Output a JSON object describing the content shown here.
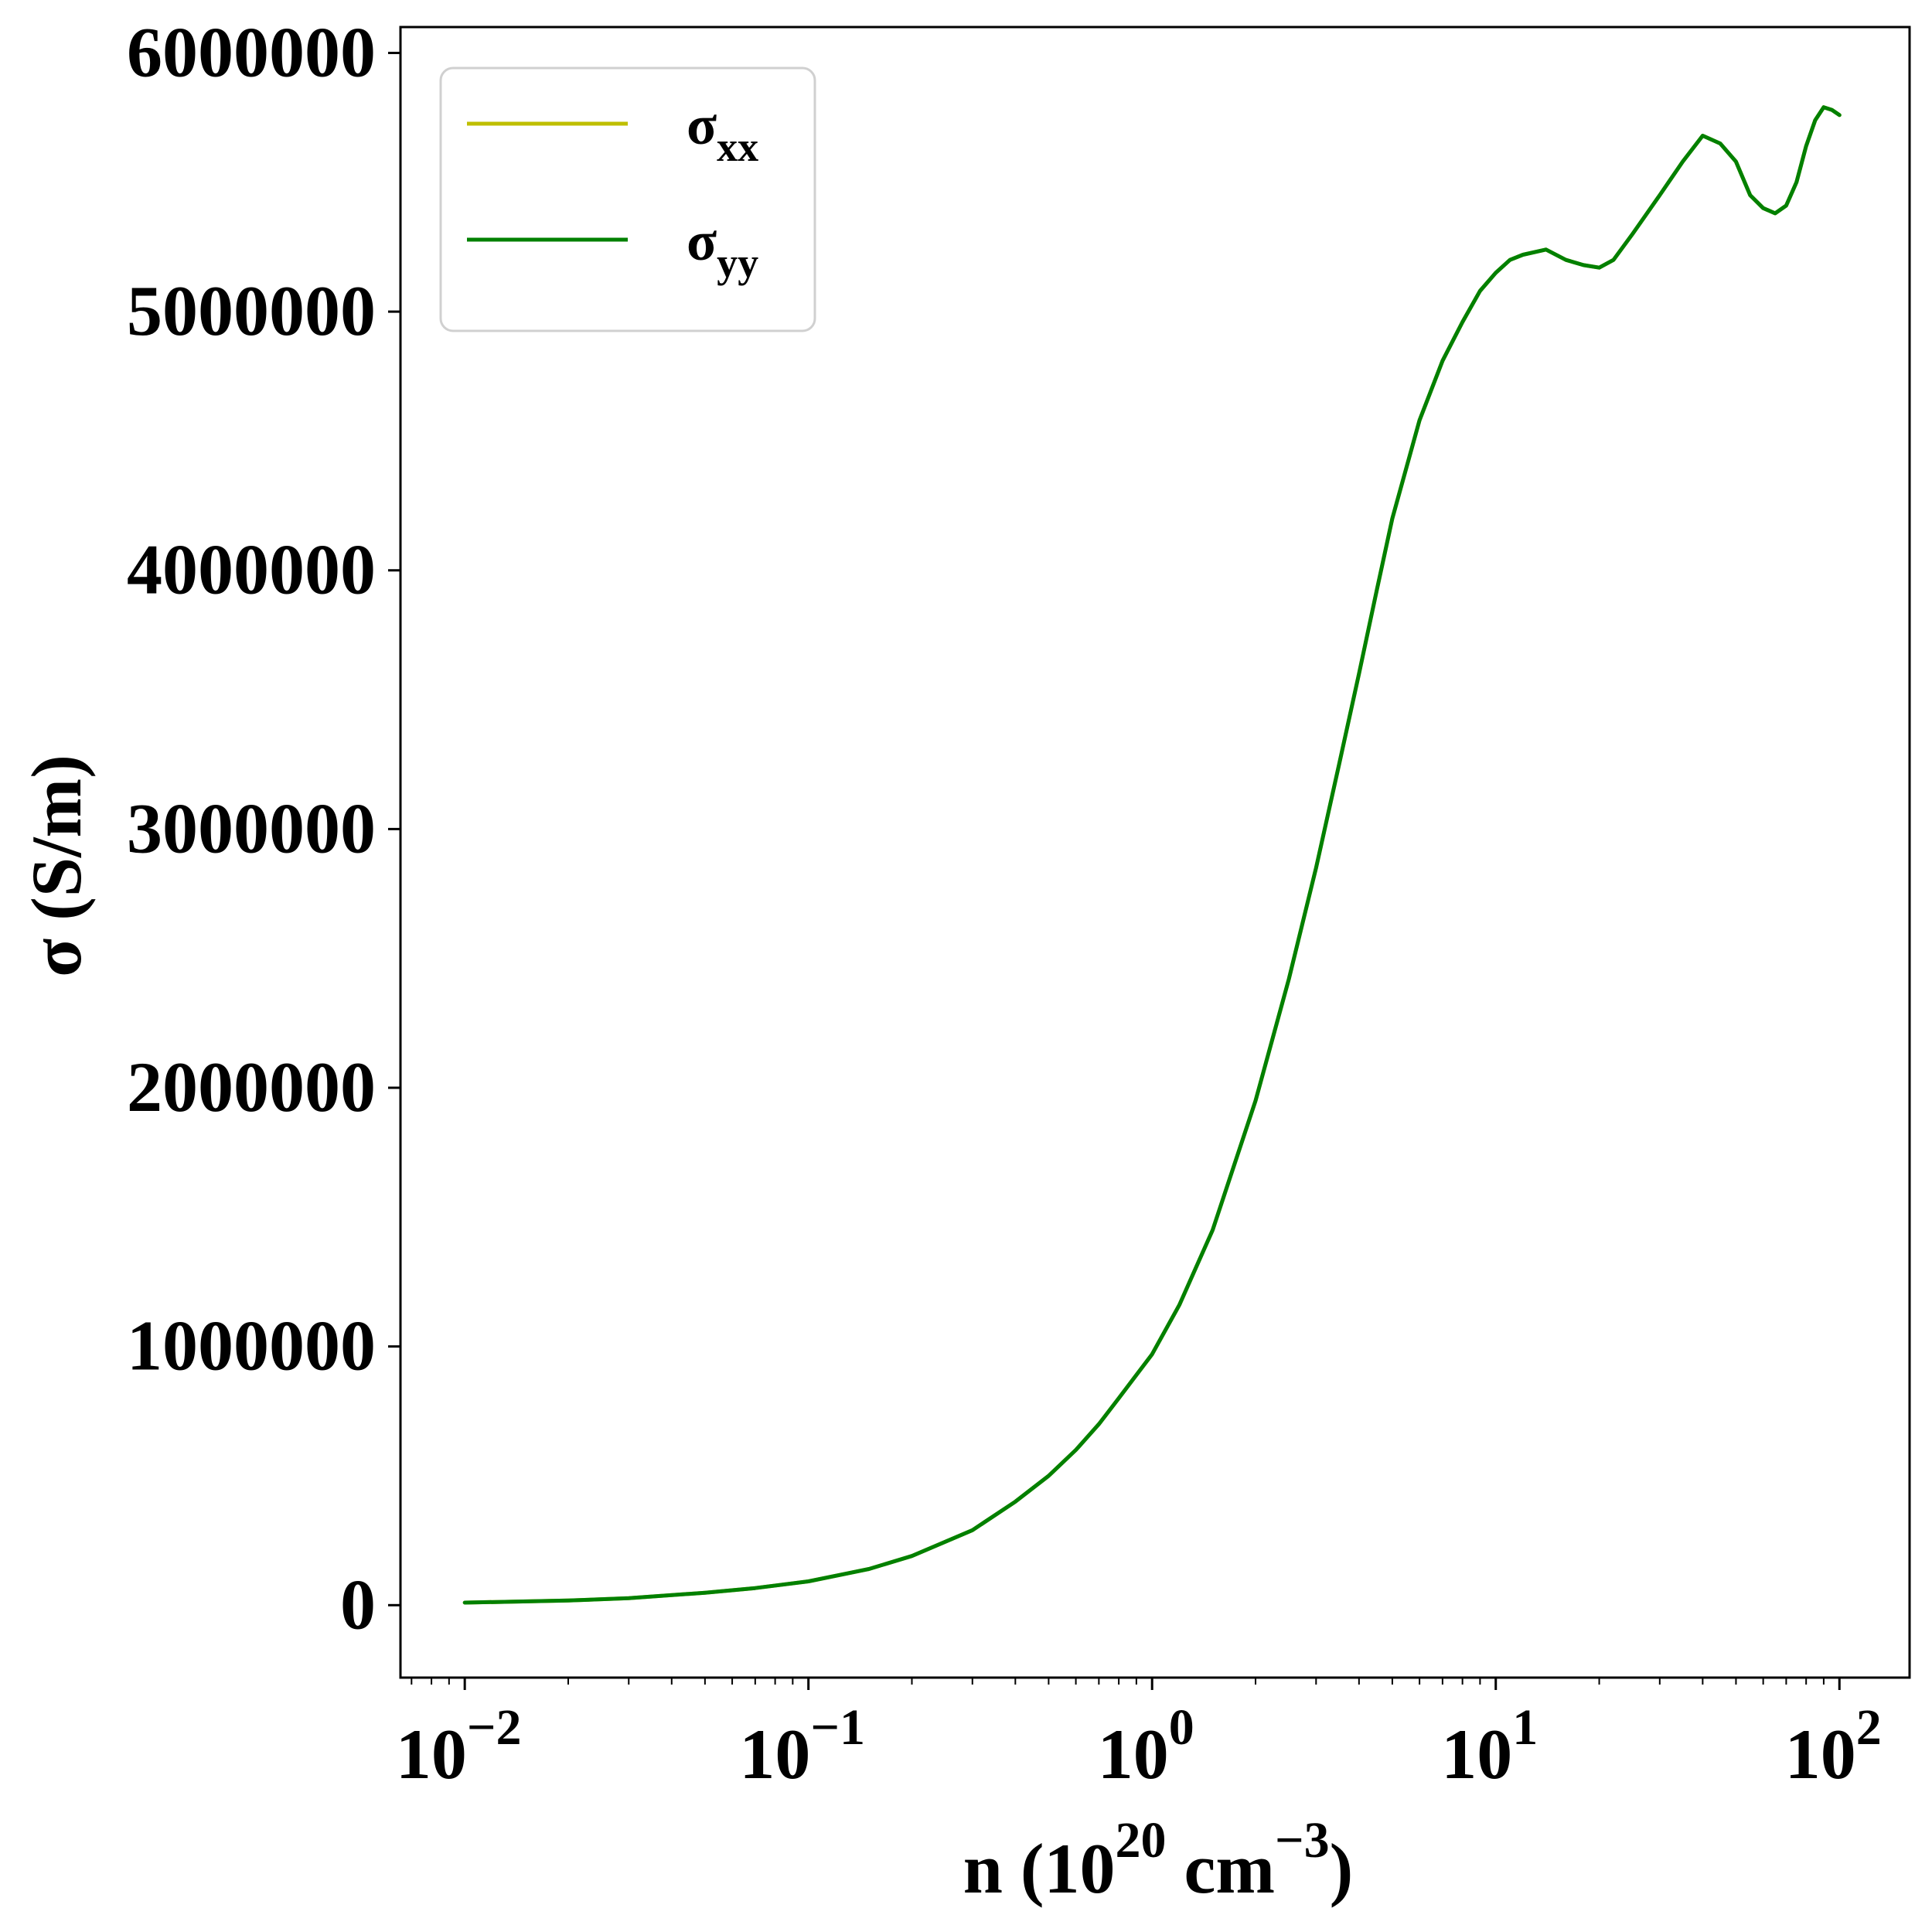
{
  "chart_data": {
    "type": "line",
    "x_scale": "log",
    "xlim": [
      0.0065,
      160
    ],
    "ylim": [
      -280000,
      6100000
    ],
    "x_ticks": [
      {
        "value": 0.01,
        "base": "10",
        "exp": "−2"
      },
      {
        "value": 0.1,
        "base": "10",
        "exp": "−1"
      },
      {
        "value": 1,
        "base": "10",
        "exp": "0"
      },
      {
        "value": 10,
        "base": "10",
        "exp": "1"
      },
      {
        "value": 100,
        "base": "10",
        "exp": "2"
      }
    ],
    "y_ticks": [
      {
        "value": 0,
        "label": "0"
      },
      {
        "value": 1000000,
        "label": "1000000"
      },
      {
        "value": 2000000,
        "label": "2000000"
      },
      {
        "value": 3000000,
        "label": "3000000"
      },
      {
        "value": 4000000,
        "label": "4000000"
      },
      {
        "value": 5000000,
        "label": "5000000"
      },
      {
        "value": 6000000,
        "label": "6000000"
      }
    ],
    "xlabel": {
      "prefix": "n (10",
      "sup1": "20",
      "mid": " cm",
      "sup2": "−3",
      "suffix": ")"
    },
    "ylabel": "σ (S/m)",
    "grid": false,
    "legend": {
      "position": "top-left",
      "entries": [
        {
          "symbol": "σ",
          "subscript": "xx",
          "color": "#bfbf00"
        },
        {
          "symbol": "σ",
          "subscript": "yy",
          "color": "#008000"
        }
      ]
    },
    "series": [
      {
        "name": "σxx",
        "color": "#bfbf00",
        "x": [
          0.01,
          0.02,
          0.03,
          0.05,
          0.07,
          0.1,
          0.15,
          0.2,
          0.3,
          0.4,
          0.5,
          0.6,
          0.7,
          0.8,
          1.0,
          1.2,
          1.5,
          2.0,
          2.5,
          3.0,
          3.5,
          4.0,
          4.5,
          5.0,
          6.0,
          7.0,
          8.0,
          9.0,
          10,
          11,
          12,
          14,
          16,
          18,
          20,
          22,
          25,
          30,
          35,
          40,
          45,
          50,
          55,
          60,
          65,
          70,
          75,
          80,
          85,
          90,
          95,
          100
        ],
        "y": [
          10000,
          18000,
          27000,
          48000,
          66000,
          92000,
          140000,
          190000,
          290000,
          400000,
          500000,
          600000,
          700000,
          800000,
          970000,
          1160000,
          1450000,
          1950000,
          2420000,
          2850000,
          3250000,
          3600000,
          3920000,
          4200000,
          4580000,
          4810000,
          4960000,
          5080000,
          5150000,
          5200000,
          5220000,
          5240000,
          5200000,
          5180000,
          5170000,
          5200000,
          5300000,
          5450000,
          5580000,
          5680000,
          5650000,
          5580000,
          5450000,
          5400000,
          5380000,
          5410000,
          5500000,
          5640000,
          5740000,
          5790000,
          5780000,
          5760000
        ]
      },
      {
        "name": "σyy",
        "color": "#008000",
        "x": [
          0.01,
          0.02,
          0.03,
          0.05,
          0.07,
          0.1,
          0.15,
          0.2,
          0.3,
          0.4,
          0.5,
          0.6,
          0.7,
          0.8,
          1.0,
          1.2,
          1.5,
          2.0,
          2.5,
          3.0,
          3.5,
          4.0,
          4.5,
          5.0,
          6.0,
          7.0,
          8.0,
          9.0,
          10,
          11,
          12,
          14,
          16,
          18,
          20,
          22,
          25,
          30,
          35,
          40,
          45,
          50,
          55,
          60,
          65,
          70,
          75,
          80,
          85,
          90,
          95,
          100
        ],
        "y": [
          10000,
          18000,
          27000,
          48000,
          66000,
          92000,
          140000,
          190000,
          290000,
          400000,
          500000,
          600000,
          700000,
          800000,
          970000,
          1160000,
          1450000,
          1950000,
          2420000,
          2850000,
          3250000,
          3600000,
          3920000,
          4200000,
          4580000,
          4810000,
          4960000,
          5080000,
          5150000,
          5200000,
          5220000,
          5240000,
          5200000,
          5180000,
          5170000,
          5200000,
          5300000,
          5450000,
          5580000,
          5680000,
          5650000,
          5580000,
          5450000,
          5400000,
          5380000,
          5410000,
          5500000,
          5640000,
          5740000,
          5790000,
          5780000,
          5760000
        ]
      }
    ]
  }
}
